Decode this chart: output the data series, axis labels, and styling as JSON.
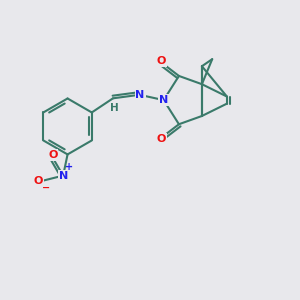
{
  "bg_color": "#e8e8ec",
  "bond_color": "#3a7a6a",
  "bond_width": 1.5,
  "atom_colors": {
    "O": "#ee1111",
    "N": "#2222ee",
    "C": "#3a7a6a",
    "H": "#3a7a6a"
  },
  "figsize": [
    3.0,
    3.0
  ],
  "dpi": 100,
  "xlim": [
    0,
    10
  ],
  "ylim": [
    0,
    10
  ]
}
